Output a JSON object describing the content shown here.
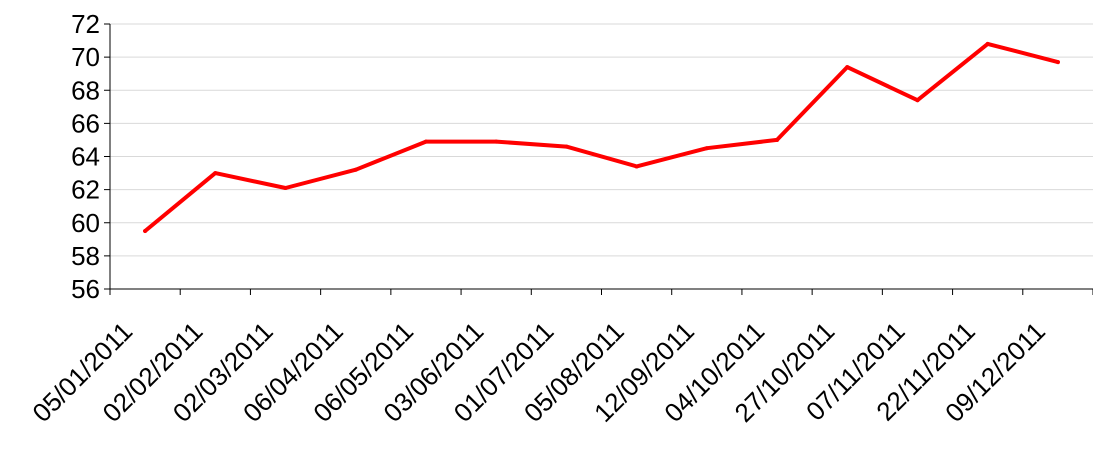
{
  "chart_data": {
    "type": "line",
    "title": "",
    "xlabel": "",
    "ylabel": "",
    "categories": [
      "05/01/2011",
      "02/02/2011",
      "02/03/2011",
      "06/04/2011",
      "06/05/2011",
      "03/06/2011",
      "01/07/2011",
      "05/08/2011",
      "12/09/2011",
      "04/10/2011",
      "27/10/2011",
      "07/11/2011",
      "22/11/2011",
      "09/12/2011"
    ],
    "series": [
      {
        "values": [
          59.5,
          63.0,
          62.1,
          63.2,
          64.9,
          64.9,
          64.6,
          63.4,
          64.5,
          65.0,
          69.4,
          67.4,
          70.8,
          69.7
        ],
        "color": "#ff0000"
      }
    ],
    "ylim": [
      56,
      72
    ],
    "yticks": [
      56,
      58,
      60,
      62,
      64,
      66,
      68,
      70,
      72
    ],
    "grid": true,
    "legend": "none"
  }
}
